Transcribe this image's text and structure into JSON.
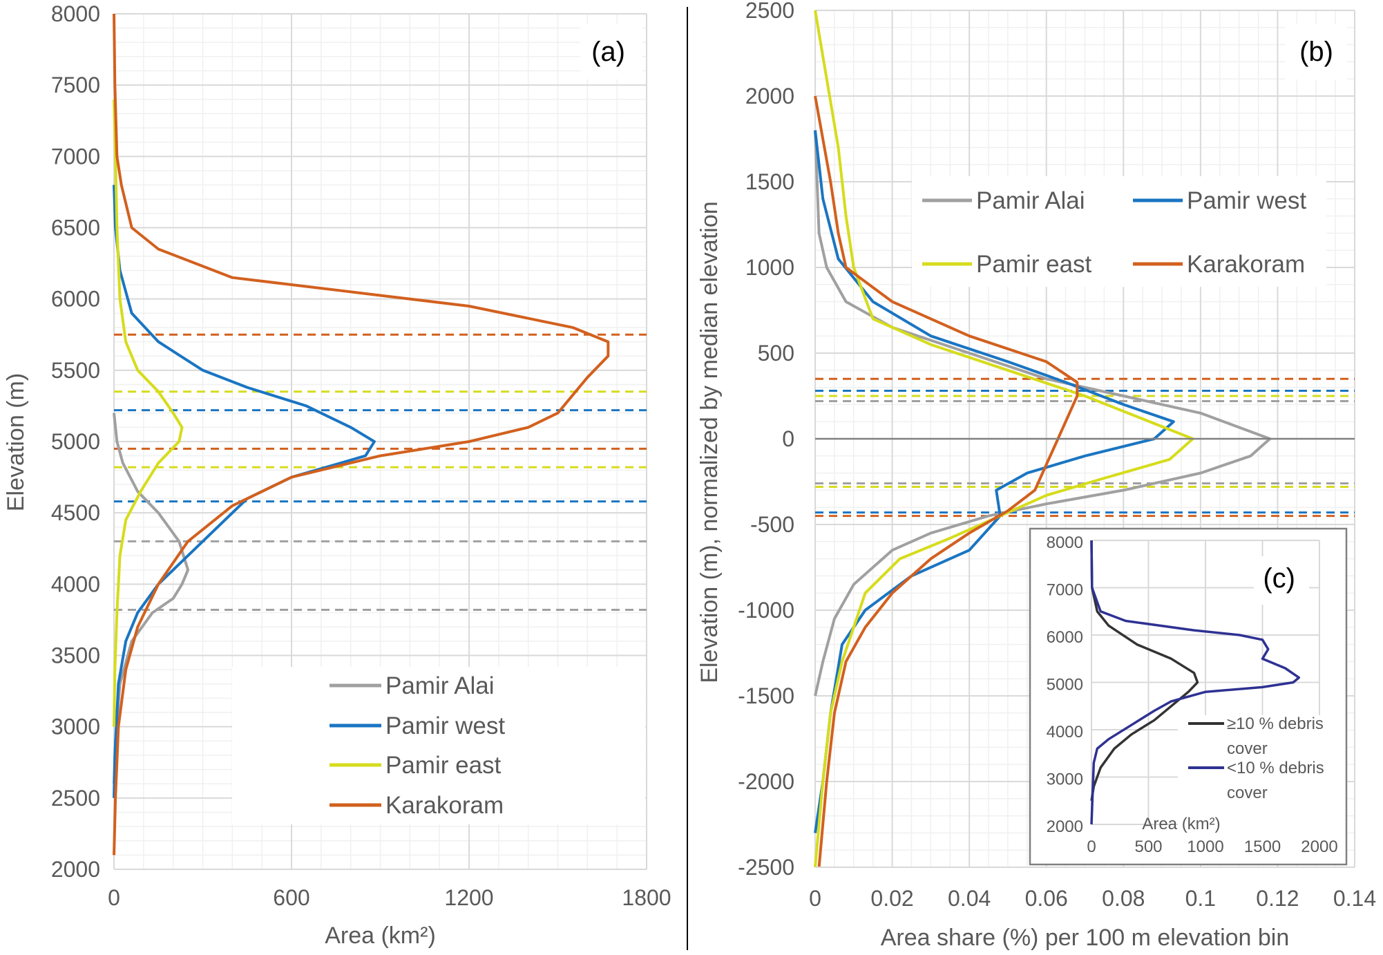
{
  "chart_data": [
    {
      "id": "a",
      "type": "line",
      "panel_label": "(a)",
      "xlabel": "Area (km²)",
      "ylabel": "Elevation (m)",
      "xlim": [
        0,
        1800
      ],
      "ylim": [
        2000,
        8000
      ],
      "xticks": [
        "0",
        "600",
        "1200",
        "1800"
      ],
      "yticks": [
        "2000",
        "2500",
        "3000",
        "3500",
        "4000",
        "4500",
        "5000",
        "5500",
        "6000",
        "6500",
        "7000",
        "7500",
        "8000"
      ],
      "grid": true,
      "legend_position": "bottom-right",
      "series": [
        {
          "name": "Pamir Alai",
          "color": "#a0a0a0",
          "points": [
            [
              0,
              5200
            ],
            [
              10,
              5000
            ],
            [
              30,
              4850
            ],
            [
              80,
              4650
            ],
            [
              150,
              4500
            ],
            [
              220,
              4300
            ],
            [
              250,
              4100
            ],
            [
              230,
              4000
            ],
            [
              200,
              3900
            ],
            [
              130,
              3800
            ],
            [
              60,
              3600
            ],
            [
              20,
              3300
            ],
            [
              5,
              2900
            ],
            [
              0,
              2600
            ]
          ],
          "dashed_levels": [
            4300,
            3820
          ]
        },
        {
          "name": "Pamir west",
          "color": "#1a75c2",
          "points": [
            [
              0,
              6800
            ],
            [
              5,
              6500
            ],
            [
              20,
              6200
            ],
            [
              60,
              5900
            ],
            [
              150,
              5700
            ],
            [
              300,
              5500
            ],
            [
              450,
              5380
            ],
            [
              650,
              5250
            ],
            [
              800,
              5100
            ],
            [
              880,
              5000
            ],
            [
              850,
              4900
            ],
            [
              600,
              4750
            ],
            [
              450,
              4600
            ],
            [
              350,
              4400
            ],
            [
              250,
              4200
            ],
            [
              150,
              4000
            ],
            [
              80,
              3800
            ],
            [
              40,
              3600
            ],
            [
              15,
              3300
            ],
            [
              3,
              2800
            ],
            [
              0,
              2500
            ]
          ],
          "dashed_levels": [
            5220,
            4580
          ]
        },
        {
          "name": "Pamir east",
          "color": "#d6dc1c",
          "points": [
            [
              0,
              7400
            ],
            [
              5,
              7000
            ],
            [
              10,
              6500
            ],
            [
              20,
              6000
            ],
            [
              40,
              5700
            ],
            [
              80,
              5500
            ],
            [
              150,
              5350
            ],
            [
              200,
              5200
            ],
            [
              230,
              5100
            ],
            [
              220,
              5000
            ],
            [
              150,
              4850
            ],
            [
              90,
              4650
            ],
            [
              40,
              4450
            ],
            [
              20,
              4200
            ],
            [
              10,
              3800
            ],
            [
              3,
              3400
            ],
            [
              0,
              3000
            ]
          ],
          "dashed_levels": [
            5350,
            4820
          ]
        },
        {
          "name": "Karakoram",
          "color": "#d2601e",
          "points": [
            [
              0,
              8000
            ],
            [
              3,
              7500
            ],
            [
              10,
              7000
            ],
            [
              25,
              6800
            ],
            [
              60,
              6500
            ],
            [
              150,
              6350
            ],
            [
              400,
              6150
            ],
            [
              800,
              6050
            ],
            [
              1200,
              5950
            ],
            [
              1550,
              5800
            ],
            [
              1670,
              5700
            ],
            [
              1670,
              5600
            ],
            [
              1600,
              5450
            ],
            [
              1500,
              5200
            ],
            [
              1400,
              5100
            ],
            [
              1200,
              5000
            ],
            [
              900,
              4900
            ],
            [
              600,
              4750
            ],
            [
              400,
              4550
            ],
            [
              250,
              4300
            ],
            [
              150,
              4000
            ],
            [
              80,
              3700
            ],
            [
              40,
              3400
            ],
            [
              15,
              3000
            ],
            [
              5,
              2500
            ],
            [
              0,
              2100
            ]
          ],
          "dashed_levels": [
            5750,
            4950
          ]
        }
      ]
    },
    {
      "id": "b",
      "type": "line",
      "panel_label": "(b)",
      "xlabel": "Area share (%) per 100 m elevation bin",
      "ylabel": "Elevation (m), normalized by median elevation",
      "xlim": [
        0,
        0.14
      ],
      "ylim": [
        -2500,
        2500
      ],
      "xticks": [
        "0",
        "0.02",
        "0.04",
        "0.06",
        "0.08",
        "0.1",
        "0.12",
        "0.14"
      ],
      "yticks": [
        "-2500",
        "-2000",
        "-1500",
        "-1000",
        "-500",
        "0",
        "500",
        "1000",
        "1500",
        "2000",
        "2500"
      ],
      "grid": true,
      "legend_position": "top-right",
      "series": [
        {
          "name": "Pamir Alai",
          "color": "#a0a0a0",
          "points": [
            [
              0,
              1800
            ],
            [
              0.001,
              1200
            ],
            [
              0.003,
              1000
            ],
            [
              0.008,
              800
            ],
            [
              0.02,
              650
            ],
            [
              0.04,
              500
            ],
            [
              0.06,
              350
            ],
            [
              0.08,
              250
            ],
            [
              0.1,
              150
            ],
            [
              0.118,
              0
            ],
            [
              0.113,
              -100
            ],
            [
              0.1,
              -200
            ],
            [
              0.08,
              -300
            ],
            [
              0.06,
              -380
            ],
            [
              0.045,
              -450
            ],
            [
              0.03,
              -550
            ],
            [
              0.02,
              -650
            ],
            [
              0.01,
              -850
            ],
            [
              0.005,
              -1050
            ],
            [
              0.002,
              -1300
            ],
            [
              0,
              -1500
            ]
          ],
          "dashed_levels": [
            220,
            -260
          ]
        },
        {
          "name": "Pamir west",
          "color": "#1a75c2",
          "points": [
            [
              0,
              1800
            ],
            [
              0.002,
              1400
            ],
            [
              0.006,
              1050
            ],
            [
              0.015,
              800
            ],
            [
              0.03,
              600
            ],
            [
              0.05,
              450
            ],
            [
              0.065,
              330
            ],
            [
              0.08,
              200
            ],
            [
              0.093,
              100
            ],
            [
              0.088,
              0
            ],
            [
              0.07,
              -100
            ],
            [
              0.055,
              -200
            ],
            [
              0.047,
              -300
            ],
            [
              0.048,
              -450
            ],
            [
              0.04,
              -650
            ],
            [
              0.025,
              -800
            ],
            [
              0.013,
              -1000
            ],
            [
              0.007,
              -1200
            ],
            [
              0.004,
              -1600
            ],
            [
              0.002,
              -2000
            ],
            [
              0,
              -2300
            ]
          ],
          "dashed_levels": [
            280,
            -430
          ]
        },
        {
          "name": "Pamir east",
          "color": "#d6dc1c",
          "points": [
            [
              0,
              2500
            ],
            [
              0.003,
              2100
            ],
            [
              0.006,
              1700
            ],
            [
              0.008,
              1300
            ],
            [
              0.01,
              1000
            ],
            [
              0.015,
              700
            ],
            [
              0.03,
              550
            ],
            [
              0.05,
              400
            ],
            [
              0.07,
              250
            ],
            [
              0.098,
              0
            ],
            [
              0.092,
              -120
            ],
            [
              0.075,
              -230
            ],
            [
              0.06,
              -330
            ],
            [
              0.048,
              -450
            ],
            [
              0.035,
              -580
            ],
            [
              0.022,
              -700
            ],
            [
              0.013,
              -900
            ],
            [
              0.01,
              -1100
            ],
            [
              0.007,
              -1300
            ],
            [
              0.004,
              -1600
            ],
            [
              0.002,
              -2000
            ],
            [
              0,
              -2500
            ]
          ],
          "dashed_levels": [
            250,
            -280
          ]
        },
        {
          "name": "Karakoram",
          "color": "#d2601e",
          "points": [
            [
              0,
              2000
            ],
            [
              0.004,
              1500
            ],
            [
              0.006,
              1200
            ],
            [
              0.008,
              1000
            ],
            [
              0.02,
              800
            ],
            [
              0.04,
              600
            ],
            [
              0.06,
              450
            ],
            [
              0.068,
              330
            ],
            [
              0.068,
              250
            ],
            [
              0.065,
              100
            ],
            [
              0.063,
              0
            ],
            [
              0.06,
              -150
            ],
            [
              0.057,
              -300
            ],
            [
              0.05,
              -420
            ],
            [
              0.04,
              -550
            ],
            [
              0.03,
              -700
            ],
            [
              0.02,
              -900
            ],
            [
              0.013,
              -1100
            ],
            [
              0.008,
              -1300
            ],
            [
              0.005,
              -1600
            ],
            [
              0.003,
              -2000
            ],
            [
              0.001,
              -2500
            ]
          ],
          "dashed_levels": [
            350,
            -450
          ]
        }
      ]
    },
    {
      "id": "c",
      "type": "line",
      "panel_label": "(c)",
      "xlabel": "Area (km²)",
      "ylabel": "Elevation (m)",
      "xlim": [
        0,
        2000
      ],
      "ylim": [
        2000,
        8000
      ],
      "xticks": [
        "0",
        "500",
        "1000",
        "1500",
        "2000"
      ],
      "yticks": [
        "2000",
        "3000",
        "4000",
        "5000",
        "6000",
        "7000",
        "8000"
      ],
      "grid": true,
      "legend_position": "right",
      "series": [
        {
          "name": "≥10 % debris cover",
          "name_lines": [
            "≥10 % debris",
            "cover"
          ],
          "color": "#333333",
          "points": [
            [
              0,
              8000
            ],
            [
              5,
              7000
            ],
            [
              50,
              6500
            ],
            [
              150,
              6200
            ],
            [
              400,
              5800
            ],
            [
              700,
              5500
            ],
            [
              900,
              5200
            ],
            [
              930,
              5000
            ],
            [
              850,
              4800
            ],
            [
              700,
              4500
            ],
            [
              550,
              4200
            ],
            [
              350,
              3900
            ],
            [
              200,
              3600
            ],
            [
              80,
              3200
            ],
            [
              20,
              2800
            ],
            [
              0,
              2500
            ]
          ]
        },
        {
          "name": "<10 % debris cover",
          "name_lines": [
            "<10 % debris",
            "cover"
          ],
          "color": "#2e3192",
          "points": [
            [
              0,
              8000
            ],
            [
              5,
              7000
            ],
            [
              80,
              6500
            ],
            [
              300,
              6300
            ],
            [
              900,
              6100
            ],
            [
              1300,
              6000
            ],
            [
              1500,
              5900
            ],
            [
              1550,
              5700
            ],
            [
              1500,
              5500
            ],
            [
              1700,
              5300
            ],
            [
              1820,
              5100
            ],
            [
              1770,
              5000
            ],
            [
              1500,
              4900
            ],
            [
              1000,
              4800
            ],
            [
              700,
              4600
            ],
            [
              550,
              4400
            ],
            [
              350,
              4100
            ],
            [
              150,
              3800
            ],
            [
              50,
              3600
            ],
            [
              20,
              3300
            ],
            [
              0,
              2000
            ]
          ]
        }
      ]
    }
  ]
}
